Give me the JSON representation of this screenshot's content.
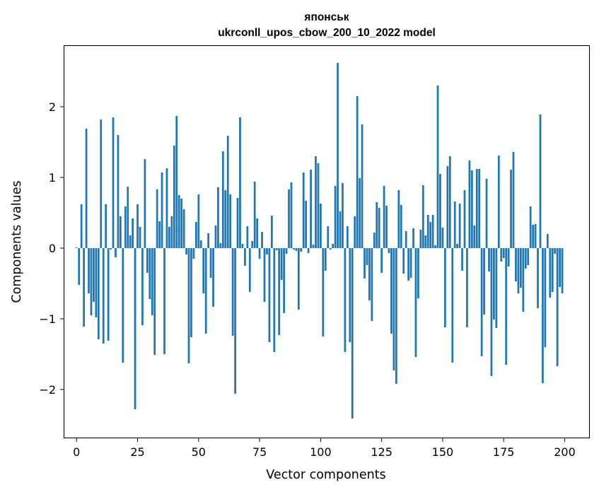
{
  "chart_data": {
    "type": "bar",
    "title": "японськ",
    "subtitle": "ukrconll_upos_cbow_200_10_2022 model",
    "xlabel": "Vector components",
    "ylabel": "Components values",
    "xlim": [
      -5,
      210
    ],
    "ylim": [
      -2.68,
      2.86
    ],
    "x_ticks": [
      0,
      25,
      50,
      75,
      100,
      125,
      150,
      175,
      200
    ],
    "y_ticks": [
      -2,
      -1,
      0,
      1,
      2
    ],
    "x_tick_labels": [
      "0",
      "25",
      "50",
      "75",
      "100",
      "125",
      "150",
      "175",
      "200"
    ],
    "y_tick_labels": [
      "−2",
      "−1",
      "0",
      "1",
      "2"
    ],
    "grid": false,
    "bar_color": "#1f77b4",
    "x": [
      0,
      1,
      2,
      3,
      4,
      5,
      6,
      7,
      8,
      9,
      10,
      11,
      12,
      13,
      14,
      15,
      16,
      17,
      18,
      19,
      20,
      21,
      22,
      23,
      24,
      25,
      26,
      27,
      28,
      29,
      30,
      31,
      32,
      33,
      34,
      35,
      36,
      37,
      38,
      39,
      40,
      41,
      42,
      43,
      44,
      45,
      46,
      47,
      48,
      49,
      50,
      51,
      52,
      53,
      54,
      55,
      56,
      57,
      58,
      59,
      60,
      61,
      62,
      63,
      64,
      65,
      66,
      67,
      68,
      69,
      70,
      71,
      72,
      73,
      74,
      75,
      76,
      77,
      78,
      79,
      80,
      81,
      82,
      83,
      84,
      85,
      86,
      87,
      88,
      89,
      90,
      91,
      92,
      93,
      94,
      95,
      96,
      97,
      98,
      99,
      100,
      101,
      102,
      103,
      104,
      105,
      106,
      107,
      108,
      109,
      110,
      111,
      112,
      113,
      114,
      115,
      116,
      117,
      118,
      119,
      120,
      121,
      122,
      123,
      124,
      125,
      126,
      127,
      128,
      129,
      130,
      131,
      132,
      133,
      134,
      135,
      136,
      137,
      138,
      139,
      140,
      141,
      142,
      143,
      144,
      145,
      146,
      147,
      148,
      149,
      150,
      151,
      152,
      153,
      154,
      155,
      156,
      157,
      158,
      159,
      160,
      161,
      162,
      163,
      164,
      165,
      166,
      167,
      168,
      169,
      170,
      171,
      172,
      173,
      174,
      175,
      176,
      177,
      178,
      179,
      180,
      181,
      182,
      183,
      184,
      185,
      186,
      187,
      188,
      189,
      190,
      191,
      192,
      193,
      194,
      195,
      196,
      197,
      198,
      199
    ],
    "values": [
      0.01,
      -0.52,
      0.62,
      -1.11,
      1.69,
      -0.64,
      -0.95,
      -0.76,
      -0.98,
      -1.29,
      1.82,
      -1.35,
      0.62,
      -1.31,
      -0.02,
      1.85,
      -0.13,
      1.6,
      0.45,
      -1.62,
      0.59,
      0.87,
      0.18,
      0.42,
      -2.28,
      0.62,
      0.3,
      -1.09,
      1.26,
      -0.35,
      -0.72,
      -0.95,
      -1.51,
      0.83,
      0.38,
      1.07,
      -1.5,
      1.13,
      0.3,
      0.45,
      1.45,
      1.87,
      0.75,
      0.7,
      0.55,
      -0.09,
      -1.63,
      -1.26,
      -0.15,
      0.37,
      0.76,
      0.11,
      -0.64,
      -1.21,
      0.21,
      -0.42,
      -0.83,
      0.32,
      0.86,
      0.07,
      1.37,
      0.82,
      1.59,
      0.76,
      -1.24,
      -2.06,
      0.71,
      1.85,
      0.06,
      -0.25,
      0.31,
      -0.62,
      0.1,
      0.94,
      0.42,
      -0.15,
      0.23,
      -0.76,
      -0.09,
      -1.33,
      0.46,
      -1.47,
      -0.03,
      -1.23,
      -0.45,
      -0.92,
      -0.08,
      0.83,
      0.93,
      -0.02,
      -0.04,
      -0.87,
      -0.05,
      1.07,
      0.67,
      -0.07,
      1.11,
      0.05,
      1.3,
      1.2,
      0.63,
      -1.25,
      -0.32,
      0.31,
      -0.02,
      0.06,
      0.88,
      2.62,
      0.52,
      0.92,
      -1.47,
      0.31,
      -1.33,
      -2.41,
      0.45,
      2.15,
      0.99,
      1.75,
      -0.43,
      -0.24,
      -0.74,
      -1.03,
      0.22,
      0.65,
      0.57,
      -0.35,
      0.88,
      0.6,
      -0.07,
      -1.21,
      -1.73,
      -1.92,
      0.82,
      0.61,
      -0.36,
      0.24,
      -0.46,
      -0.42,
      0.28,
      -1.54,
      -0.71,
      0.26,
      0.89,
      0.18,
      0.47,
      0.37,
      0.47,
      0.04,
      2.3,
      1.05,
      0.29,
      -1.12,
      1.16,
      1.3,
      -1.62,
      0.66,
      0.06,
      0.63,
      -0.32,
      0.82,
      -1.12,
      1.24,
      1.1,
      0.32,
      1.12,
      1.12,
      -1.53,
      -0.94,
      0.98,
      -0.33,
      -1.81,
      -1.01,
      -1.13,
      1.31,
      -0.19,
      -0.14,
      -1.65,
      -0.26,
      1.11,
      1.36,
      -0.47,
      -0.64,
      -0.56,
      -0.9,
      -0.29,
      -0.24,
      0.59,
      0.33,
      0.34,
      -0.85,
      1.89,
      -1.91,
      -1.4,
      0.2,
      -0.7,
      -0.62,
      -0.08,
      -1.67,
      -0.55,
      -0.64
    ]
  }
}
